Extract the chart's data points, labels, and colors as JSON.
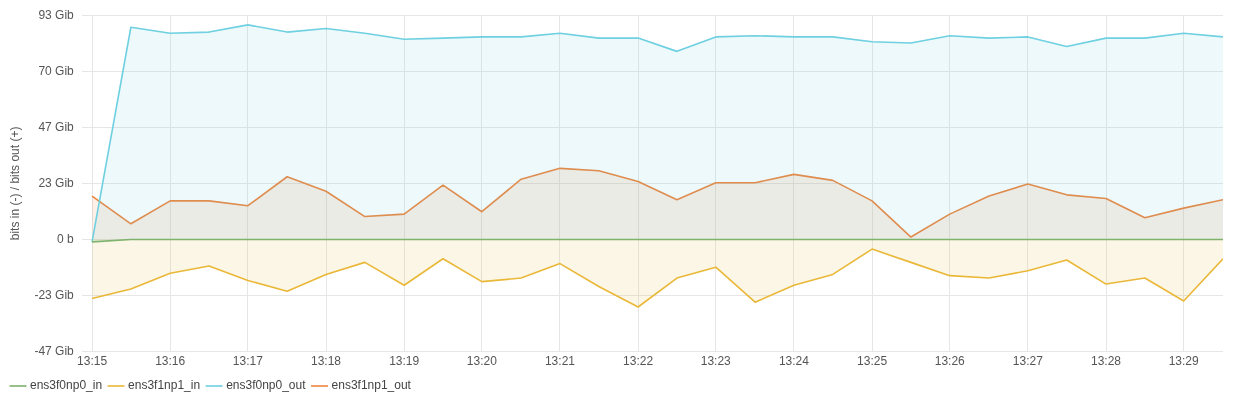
{
  "chart_data": {
    "type": "area",
    "ylabel": "bits in (-) / bits out (+)",
    "x": [
      13.25,
      13.2583,
      13.2667,
      13.275,
      13.2833,
      13.2917,
      13.3,
      13.3083,
      13.3167,
      13.325,
      13.3333,
      13.3417,
      13.35,
      13.3583,
      13.3667,
      13.375,
      13.3833,
      13.3917,
      13.4,
      13.4083,
      13.4167,
      13.425,
      13.4333,
      13.4417,
      13.45,
      13.4583,
      13.4667,
      13.475,
      13.4833,
      13.4917
    ],
    "series": [
      {
        "name": "ens3f0np0_in",
        "color": "#7eb26d",
        "values": [
          -1,
          0,
          0,
          0,
          0,
          0,
          0,
          0,
          0,
          0,
          0,
          0,
          0,
          0,
          0,
          0,
          0,
          0,
          0,
          0,
          0,
          0,
          0,
          0,
          0,
          0,
          0,
          0,
          0,
          0
        ]
      },
      {
        "name": "ens3f1np1_in",
        "color": "#eab839",
        "values": [
          -24.5,
          -20.5,
          -14,
          -11,
          -17,
          -21.5,
          -14.5,
          -9.5,
          -19,
          -8,
          -17.5,
          -16,
          -10,
          -19.5,
          -28,
          -16,
          -11.5,
          -26,
          -19,
          -14.5,
          -4,
          -9.5,
          -15,
          -16,
          -13,
          -8.5,
          -18.5,
          -16,
          -25.5,
          -8
        ]
      },
      {
        "name": "ens3f0np0_out",
        "color": "#6ed0e0",
        "values": [
          -1,
          88,
          85.5,
          86,
          89,
          86,
          87.5,
          85.5,
          83,
          83.5,
          84,
          84,
          85.5,
          83.5,
          83.5,
          78,
          84,
          84.5,
          84,
          84,
          82,
          81.5,
          84.5,
          83.5,
          84,
          80,
          83.5,
          83.5,
          85.5,
          84
        ]
      },
      {
        "name": "ens3f1np1_out",
        "color": "#ef843c",
        "values": [
          18,
          6.5,
          16,
          16,
          14,
          26,
          20,
          9.5,
          10.5,
          22.5,
          11.5,
          25,
          29.5,
          28.5,
          24,
          16.5,
          23.5,
          23.5,
          27,
          24.5,
          16,
          1,
          10.5,
          18,
          23,
          18.5,
          17,
          9,
          13,
          16.5
        ]
      }
    ],
    "xlim": [
      13.2478,
      13.4917
    ],
    "xticks": [
      {
        "value": 13.25,
        "label": "13:15"
      },
      {
        "value": 13.2667,
        "label": "13:16"
      },
      {
        "value": 13.2833,
        "label": "13:17"
      },
      {
        "value": 13.3,
        "label": "13:18"
      },
      {
        "value": 13.3167,
        "label": "13:19"
      },
      {
        "value": 13.3333,
        "label": "13:20"
      },
      {
        "value": 13.35,
        "label": "13:21"
      },
      {
        "value": 13.3667,
        "label": "13:22"
      },
      {
        "value": 13.3833,
        "label": "13:23"
      },
      {
        "value": 13.4,
        "label": "13:24"
      },
      {
        "value": 13.4167,
        "label": "13:25"
      },
      {
        "value": 13.4333,
        "label": "13:26"
      },
      {
        "value": 13.45,
        "label": "13:27"
      },
      {
        "value": 13.4667,
        "label": "13:28"
      },
      {
        "value": 13.4833,
        "label": "13:29"
      }
    ],
    "ylim": [
      -46.5,
      93
    ],
    "yticks": [
      {
        "value": -46.5,
        "label": "-47 Gib"
      },
      {
        "value": -23.25,
        "label": "-23 Gib"
      },
      {
        "value": 0,
        "label": "0 b"
      },
      {
        "value": 23.25,
        "label": "23 Gib"
      },
      {
        "value": 46.5,
        "label": "47 Gib"
      },
      {
        "value": 69.75,
        "label": "70 Gib"
      },
      {
        "value": 93,
        "label": "93 Gib"
      }
    ],
    "grid": true,
    "legend": "bottom left",
    "marker": "none",
    "line_style": "solid"
  }
}
